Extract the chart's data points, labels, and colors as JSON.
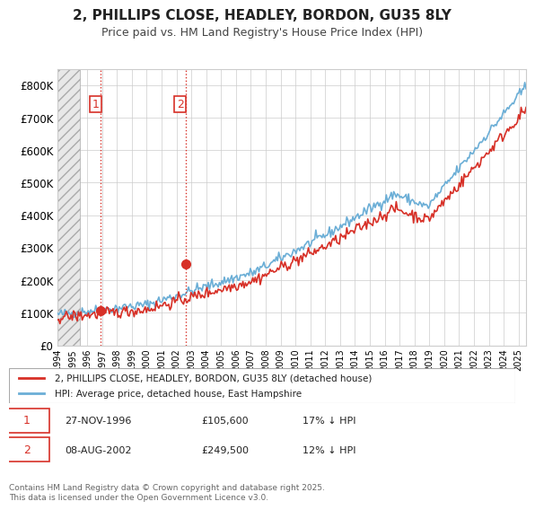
{
  "title": "2, PHILLIPS CLOSE, HEADLEY, BORDON, GU35 8LY",
  "subtitle": "Price paid vs. HM Land Registry's House Price Index (HPI)",
  "ylabel_values": [
    "£0",
    "£100K",
    "£200K",
    "£300K",
    "£400K",
    "£500K",
    "£600K",
    "£700K",
    "£800K"
  ],
  "ylim": [
    0,
    850000
  ],
  "xlim_start": 1994.0,
  "xlim_end": 2025.5,
  "hpi_color": "#6baed6",
  "price_color": "#d73027",
  "purchase1_date": 1996.91,
  "purchase1_price": 105600,
  "purchase1_label": "1",
  "purchase2_date": 2002.6,
  "purchase2_price": 249500,
  "purchase2_label": "2",
  "legend1_text": "2, PHILLIPS CLOSE, HEADLEY, BORDON, GU35 8LY (detached house)",
  "legend2_text": "HPI: Average price, detached house, East Hampshire",
  "table_row1": "1    27-NOV-1996    £105,600    17% ↓ HPI",
  "table_row2": "2    08-AUG-2002    £249,500    12% ↓ HPI",
  "footer": "Contains HM Land Registry data © Crown copyright and database right 2025.\nThis data is licensed under the Open Government Licence v3.0.",
  "hatch_end": 1995.5,
  "background_color": "#ffffff",
  "plot_bg_color": "#ffffff",
  "grid_color": "#cccccc"
}
